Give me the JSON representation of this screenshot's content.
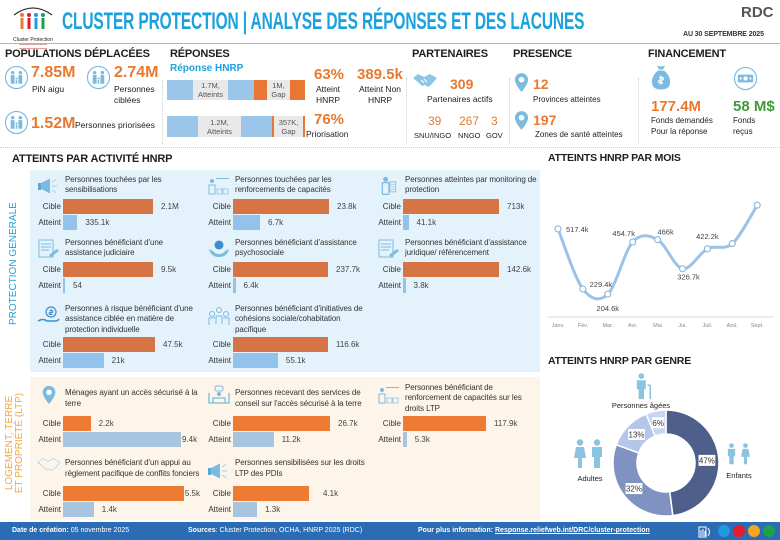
{
  "header": {
    "logo_text": "Cluster Protection",
    "title": "CLUSTER PROTECTION | ANALYSE DES RÉPONSES ET DES LACUNES",
    "country": "RDC",
    "date": "AU 30 SEPTEMBRE 2025"
  },
  "colors": {
    "title_blue": "#1ba1dc",
    "orange": "#e8792f",
    "green": "#3f9a3a",
    "footer_blue": "#2b6cb5",
    "line_blue": "#9cc3e6"
  },
  "populations": {
    "title": "POPULATIONS DÉPLACÉES",
    "items": [
      {
        "icon": "people-circle-icon",
        "value": "7.85M",
        "label": "PiN aigu"
      },
      {
        "icon": "people-circle-icon",
        "value": "2.74M",
        "label": "Personnes ciblées"
      },
      {
        "icon": "people-circle-icon",
        "value": "1.52M",
        "label": "Personnes priorisées"
      }
    ]
  },
  "reponses": {
    "title": "RÉPONSES",
    "subtitle": "Réponse HNRP",
    "bars": [
      {
        "atteint_label": "1.7M, Atteints",
        "gap_label": "1M, Gap",
        "atteint_pct": 63
      },
      {
        "atteint_label": "1.2M, Atteints",
        "gap_label": "357K, Gap",
        "atteint_pct": 76
      }
    ],
    "stats": [
      {
        "value": "63%",
        "label": "Atteint HNRP"
      },
      {
        "value": "389.5k",
        "label": "Atteint Non HNRP"
      },
      {
        "value": "76%",
        "label": "Priorisation"
      }
    ]
  },
  "partenaires": {
    "title": "PARTENAIRES",
    "total": "309",
    "total_label": "Partenaires actifs",
    "breakdown": [
      {
        "value": "39",
        "label": "SNU/INGO"
      },
      {
        "value": "267",
        "label": "NNGO"
      },
      {
        "value": "3",
        "label": "GOV"
      }
    ]
  },
  "presence": {
    "title": "PRESENCE",
    "items": [
      {
        "value": "12",
        "label": "Provinces atteintes"
      },
      {
        "value": "197",
        "label": "Zones de santé atteintes"
      }
    ]
  },
  "financement": {
    "title": "FINANCEMENT",
    "items": [
      {
        "value": "177.4M",
        "label_1": "Fonds demandés",
        "label_2": "Pour la réponse"
      },
      {
        "value": "58 M$",
        "label_1": "Fonds",
        "label_2": "reçus"
      }
    ]
  },
  "activities": {
    "title": "ATTEINTS PAR ACTIVITÉ HNRP",
    "cible_label": "Cible",
    "atteint_label": "Atteint",
    "sections": [
      {
        "label": "PROTECTION GENERALE",
        "cards": [
          {
            "title": "Personnes touchées par les sensibilisations",
            "cible": 2100000,
            "cible_label": "2.1M",
            "atteint": 335100,
            "atteint_label": "335.1k"
          },
          {
            "title": "Personnes touchées par les renforcements de capacités",
            "cible": 23800,
            "cible_label": "23.8k",
            "atteint": 6700,
            "atteint_label": "6.7k"
          },
          {
            "title": "Personnes atteintes par monitoring de protection",
            "cible": 713000,
            "cible_label": "713k",
            "atteint": 41100,
            "atteint_label": "41.1k"
          },
          {
            "title": "Personnes bénéficiant d'une assistance judiciaire",
            "cible": 9500,
            "cible_label": "9.5k",
            "atteint": 54,
            "atteint_label": "54"
          },
          {
            "title": "Personnes bénéficiant d'assistance psychosociale",
            "cible": 237700,
            "cible_label": "237.7k",
            "atteint": 6400,
            "atteint_label": "6.4k"
          },
          {
            "title": "Personnes bénéficiant d'assistance juridique/ référencement",
            "cible": 142600,
            "cible_label": "142.6k",
            "atteint": 3800,
            "atteint_label": "3.8k"
          },
          {
            "title": "Personnes à risque bénéficiant d'une assistance ciblée en matière de protection individuelle",
            "cible": 47500,
            "cible_label": "47.5k",
            "atteint": 21000,
            "atteint_label": "21k"
          },
          {
            "title": "Personnes bénéficiant d'initiatives de cohésions sociale/cohabitation pacifique",
            "cible": 116600,
            "cible_label": "116.6k",
            "atteint": 55100,
            "atteint_label": "55.1k"
          }
        ]
      },
      {
        "label_line1": "LOGEMENT, TERRE",
        "label_line2": "ET PROPRIÉTÉ (LTP)",
        "cards": [
          {
            "title": "Ménages ayant un accès sécurisé à la terre",
            "cible": 2200,
            "cible_label": "2.2k",
            "atteint": 9400,
            "atteint_label": "9.4k"
          },
          {
            "title": "Personnes recevant des services de conseil sur l'accès sécurisé à la terre",
            "cible": 26700,
            "cible_label": "26.7k",
            "atteint": 11200,
            "atteint_label": "11.2k"
          },
          {
            "title": "Personnes bénéficiant de renforcement de capacités sur les droits LTP",
            "cible": 117900,
            "cible_label": "117.9k",
            "atteint": 5300,
            "atteint_label": "5.3k"
          },
          {
            "title": "Personnes bénéficiant d'un appui au règlement pacifique de conflits fonciers",
            "cible": 5500,
            "cible_label": "5.5k",
            "atteint": 1400,
            "atteint_label": "1.4k"
          },
          {
            "title": "Personnes sensibilisées sur les droits LTP des PDIs",
            "cible": 4100,
            "cible_label": "4.1k",
            "atteint": 1300,
            "atteint_label": "1.3k"
          }
        ]
      }
    ]
  },
  "chart_data": [
    {
      "type": "line",
      "title": "ATTEINTS HNRP PAR MOIS",
      "categories": [
        "Janv.",
        "Fév.",
        "Mar.",
        "Avr.",
        "Mai",
        "Jui.",
        "Juil.",
        "Aoû.",
        "Sept."
      ],
      "values": [
        517.4,
        229.4,
        204.6,
        454.7,
        466,
        326.7,
        422.2,
        447,
        631
      ],
      "units": "thousands",
      "data_labels": [
        "517.4k",
        "229.4k",
        "204.6k",
        "454.7k",
        "466k",
        "326.7k",
        "422.2k",
        "",
        ""
      ],
      "xlabel": "",
      "ylabel": "",
      "ylim": [
        100,
        680
      ],
      "grid": false,
      "smooth": true
    },
    {
      "type": "pie",
      "variant": "donut",
      "title": "ATTEINTS HNRP PAR GENRE",
      "slices": [
        {
          "value": 47,
          "label": "47%",
          "color": "#4e5f8c"
        },
        {
          "value": 32,
          "label": "32%",
          "color": "#7f92c2"
        },
        {
          "value": 13,
          "label": "13%",
          "color": "#b4c6ea"
        },
        {
          "value": 6,
          "label": "6%",
          "color": "#c8d5f0"
        }
      ],
      "annotations": {
        "top": "Personnes âgées",
        "left": "Adultes",
        "right": "Enfants"
      }
    }
  ],
  "footer": {
    "date_label": "Date de création:",
    "date_value": " 05 novembre 2025",
    "sources_label": "Sources",
    "sources_value": ": Cluster Protection, OCHA, HNRP 2025 (RDC)",
    "info_label": "Pour plus information: ",
    "info_link": "Response.reliefweb.int/DRC/cluster-protection",
    "dot_colors": [
      "#1e9be0",
      "#e21c2a",
      "#f5a623",
      "#1ca04a"
    ]
  }
}
